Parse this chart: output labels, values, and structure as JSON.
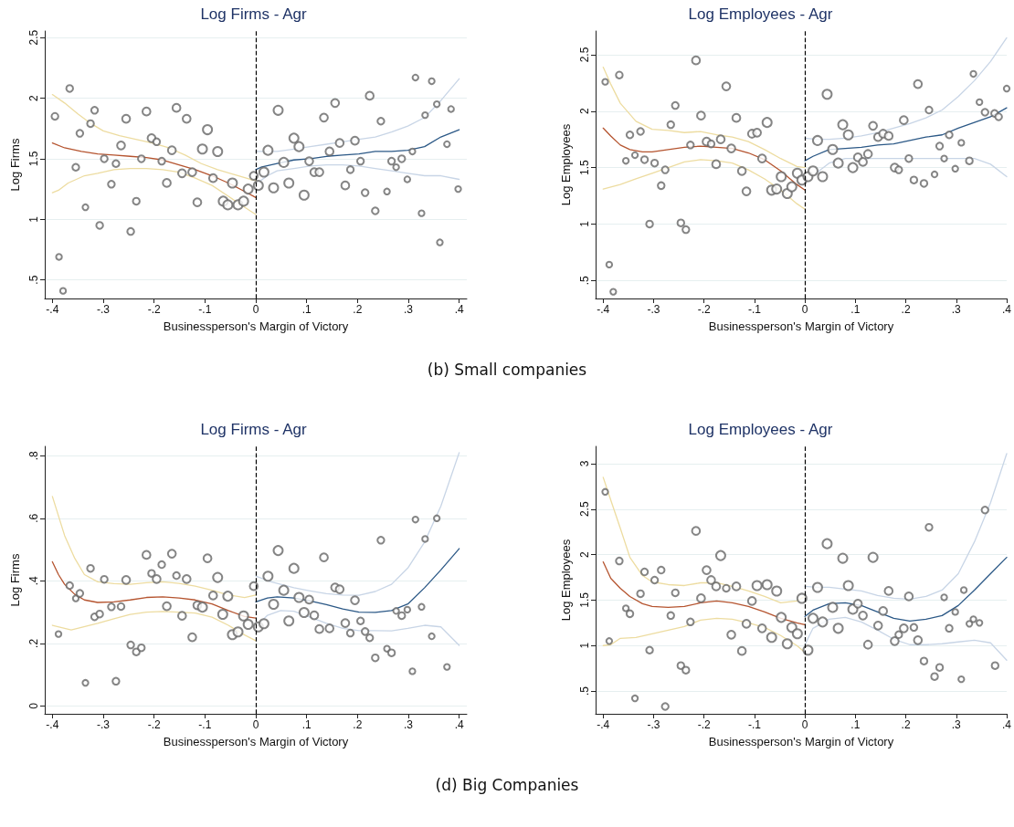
{
  "chart_data": [
    {
      "type": "bubble",
      "title": "Log Firms - Agr",
      "xlabel": "Businessperson's Margin of Victory",
      "ylabel": "Log Firms",
      "annotations": [
        "(b) Small companies"
      ],
      "xlim": [
        -0.415,
        0.415
      ],
      "ylim": [
        0.347,
        2.554
      ],
      "xticks": [
        {
          "value": -0.4,
          "label": "-.4"
        },
        {
          "value": -0.3,
          "label": "-.3"
        },
        {
          "value": -0.2,
          "label": "-.2"
        },
        {
          "value": -0.1,
          "label": "-.1"
        },
        {
          "value": 0,
          "label": "0"
        },
        {
          "value": 0.1,
          "label": ".1"
        },
        {
          "value": 0.2,
          "label": ".2"
        },
        {
          "value": 0.3,
          "label": ".3"
        },
        {
          "value": 0.4,
          "label": ".4"
        }
      ],
      "yticks": [
        {
          "value": 0.5,
          "label": ".5"
        },
        1,
        1.5,
        2,
        2.5
      ],
      "grid": "y",
      "ref_lines": [
        {
          "axis": "x",
          "value": 0,
          "color": "#000000",
          "line_style": "dashed"
        }
      ],
      "series": [
        {
          "color": "#666666",
          "x": [
            -0.395,
            -0.366,
            -0.387,
            -0.379,
            -0.354,
            -0.346,
            -0.335,
            -0.325,
            -0.317,
            -0.307,
            -0.298,
            -0.284,
            -0.275,
            -0.265,
            -0.255,
            -0.246,
            -0.235,
            -0.225,
            -0.215,
            -0.205,
            -0.195,
            -0.185,
            -0.175,
            -0.165,
            -0.156,
            -0.145,
            -0.136,
            -0.125,
            -0.115,
            -0.105,
            -0.095,
            -0.084,
            -0.075,
            -0.064,
            -0.055,
            -0.046,
            -0.035,
            -0.024,
            -0.015,
            -0.004,
            0.005,
            0.016,
            0.024,
            0.035,
            0.044,
            0.055,
            0.065,
            0.075,
            0.085,
            0.095,
            0.105,
            0.115,
            0.125,
            0.134,
            0.145,
            0.156,
            0.165,
            0.176,
            0.186,
            0.195,
            0.206,
            0.215,
            0.224,
            0.235,
            0.246,
            0.258,
            0.267,
            0.276,
            0.287,
            0.298,
            0.308,
            0.314,
            0.326,
            0.333,
            0.346,
            0.356,
            0.362,
            0.376,
            0.384,
            0.398
          ],
          "values": [
            1.85,
            2.08,
            0.69,
            0.41,
            1.43,
            1.71,
            1.1,
            1.79,
            1.9,
            0.95,
            1.5,
            1.29,
            1.46,
            1.61,
            1.83,
            0.9,
            1.15,
            1.5,
            1.89,
            1.67,
            1.64,
            1.48,
            1.3,
            1.57,
            1.92,
            1.38,
            1.83,
            1.39,
            1.14,
            1.58,
            1.74,
            1.34,
            1.56,
            1.15,
            1.12,
            1.3,
            1.12,
            1.15,
            1.25,
            1.36,
            1.28,
            1.39,
            1.57,
            1.26,
            1.9,
            1.47,
            1.3,
            1.67,
            1.6,
            1.2,
            1.48,
            1.39,
            1.39,
            1.84,
            1.56,
            1.96,
            1.63,
            1.28,
            1.41,
            1.65,
            1.48,
            1.22,
            2.02,
            1.07,
            1.81,
            1.23,
            1.48,
            1.43,
            1.5,
            1.33,
            1.56,
            2.17,
            1.05,
            1.86,
            2.14,
            1.95,
            0.81,
            1.62,
            1.91,
            1.25
          ],
          "sizes": [
            0.55,
            0.55,
            0.4,
            0.4,
            0.55,
            0.55,
            0.4,
            0.55,
            0.55,
            0.55,
            0.55,
            0.55,
            0.55,
            0.75,
            0.75,
            0.55,
            0.55,
            0.55,
            0.75,
            0.75,
            0.55,
            0.55,
            0.75,
            0.75,
            0.75,
            0.75,
            0.75,
            0.75,
            0.75,
            1,
            1,
            0.75,
            1,
            1,
            1,
            1,
            1,
            1,
            1,
            0.75,
            1,
            1,
            1,
            1,
            1,
            1,
            1,
            1,
            1,
            1,
            0.75,
            0.75,
            0.75,
            0.75,
            0.75,
            0.75,
            0.75,
            0.75,
            0.55,
            0.75,
            0.55,
            0.55,
            0.75,
            0.55,
            0.55,
            0.4,
            0.55,
            0.4,
            0.55,
            0.4,
            0.4,
            0.4,
            0.4,
            0.4,
            0.4,
            0.4,
            0.4,
            0.4,
            0.4,
            0.4
          ]
        },
        {
          "type": "line",
          "color": "#eddca0",
          "x": [
            -0.4,
            -0.376,
            -0.35,
            -0.324,
            -0.3,
            -0.268,
            -0.236,
            -0.204,
            -0.171,
            -0.139,
            -0.107,
            -0.075,
            -0.043,
            -0.011,
            0
          ],
          "values": [
            2.03,
            1.96,
            1.87,
            1.79,
            1.73,
            1.69,
            1.66,
            1.63,
            1.59,
            1.53,
            1.46,
            1.41,
            1.37,
            1.33,
            1.32
          ]
        },
        {
          "type": "line",
          "color": "#eddca0",
          "x": [
            -0.4,
            -0.388,
            -0.369,
            -0.337,
            -0.311,
            -0.279,
            -0.247,
            -0.215,
            -0.183,
            -0.151,
            -0.119,
            -0.086,
            -0.054,
            -0.022,
            0
          ],
          "values": [
            1.22,
            1.24,
            1.3,
            1.36,
            1.38,
            1.41,
            1.42,
            1.42,
            1.41,
            1.39,
            1.34,
            1.28,
            1.19,
            1.1,
            1.04
          ]
        },
        {
          "type": "line",
          "color": "#b5542f",
          "x": [
            -0.4,
            -0.376,
            -0.343,
            -0.311,
            -0.279,
            -0.247,
            -0.215,
            -0.183,
            -0.151,
            -0.119,
            -0.086,
            -0.054,
            -0.022,
            0
          ],
          "values": [
            1.63,
            1.59,
            1.56,
            1.54,
            1.53,
            1.52,
            1.51,
            1.49,
            1.45,
            1.41,
            1.36,
            1.3,
            1.23,
            1.18
          ]
        },
        {
          "type": "line",
          "color": "#c8d5e6",
          "x": [
            0,
            0.023,
            0.042,
            0.075,
            0.107,
            0.139,
            0.171,
            0.203,
            0.235,
            0.267,
            0.299,
            0.332,
            0.364,
            0.4
          ],
          "values": [
            1.56,
            1.56,
            1.56,
            1.58,
            1.6,
            1.62,
            1.64,
            1.66,
            1.68,
            1.72,
            1.77,
            1.84,
            1.98,
            2.16
          ]
        },
        {
          "type": "line",
          "color": "#c8d5e6",
          "x": [
            0,
            0.023,
            0.042,
            0.075,
            0.107,
            0.139,
            0.171,
            0.203,
            0.235,
            0.267,
            0.299,
            0.332,
            0.364,
            0.4
          ],
          "values": [
            1.29,
            1.36,
            1.4,
            1.42,
            1.44,
            1.45,
            1.45,
            1.44,
            1.42,
            1.4,
            1.38,
            1.36,
            1.36,
            1.33
          ]
        },
        {
          "type": "line",
          "color": "#2b5886",
          "x": [
            0,
            0.01,
            0.042,
            0.075,
            0.107,
            0.139,
            0.171,
            0.203,
            0.235,
            0.267,
            0.299,
            0.332,
            0.364,
            0.4
          ],
          "values": [
            1.41,
            1.43,
            1.46,
            1.49,
            1.5,
            1.52,
            1.53,
            1.54,
            1.56,
            1.56,
            1.57,
            1.6,
            1.68,
            1.74
          ]
        }
      ]
    },
    {
      "type": "bubble",
      "title": "Log Employees - Agr",
      "xlabel": "Businessperson's Margin of Victory",
      "ylabel": "Log Employees",
      "xlim": [
        -0.415,
        0.4
      ],
      "ylim": [
        0.34,
        2.71
      ],
      "xticks": [
        {
          "value": -0.4,
          "label": "-.4"
        },
        {
          "value": -0.3,
          "label": "-.3"
        },
        {
          "value": -0.2,
          "label": "-.2"
        },
        {
          "value": -0.1,
          "label": "-.1"
        },
        {
          "value": 0,
          "label": "0"
        },
        {
          "value": 0.1,
          "label": ".1"
        },
        {
          "value": 0.2,
          "label": ".2"
        },
        {
          "value": 0.3,
          "label": ".3"
        },
        {
          "value": 0.4,
          "label": ".4"
        }
      ],
      "yticks": [
        {
          "value": 0.5,
          "label": ".5"
        },
        1,
        1.5,
        2,
        2.5
      ],
      "grid": "y",
      "ref_lines": [
        {
          "axis": "x",
          "value": 0,
          "color": "#000000",
          "line_style": "dashed"
        }
      ],
      "series": [
        {
          "color": "#666666",
          "x": [
            -0.396,
            -0.368,
            -0.388,
            -0.38,
            -0.355,
            -0.347,
            -0.337,
            -0.326,
            -0.318,
            -0.308,
            -0.298,
            -0.285,
            -0.277,
            -0.266,
            -0.257,
            -0.246,
            -0.236,
            -0.227,
            -0.216,
            -0.206,
            -0.195,
            -0.186,
            -0.176,
            -0.167,
            -0.156,
            -0.146,
            -0.136,
            -0.125,
            -0.116,
            -0.105,
            -0.095,
            -0.085,
            -0.075,
            -0.066,
            -0.056,
            -0.047,
            -0.035,
            -0.026,
            -0.015,
            -0.006,
            0.006,
            0.016,
            0.025,
            0.035,
            0.044,
            0.055,
            0.066,
            0.075,
            0.086,
            0.095,
            0.105,
            0.115,
            0.125,
            0.135,
            0.145,
            0.155,
            0.166,
            0.178,
            0.186,
            0.196,
            0.206,
            0.216,
            0.224,
            0.236,
            0.246,
            0.257,
            0.267,
            0.276,
            0.286,
            0.298,
            0.31,
            0.326,
            0.334,
            0.346,
            0.357,
            0.376,
            0.384,
            0.4
          ],
          "values": [
            2.26,
            2.32,
            0.64,
            0.4,
            1.56,
            1.79,
            1.61,
            1.82,
            1.57,
            1.0,
            1.54,
            1.34,
            1.48,
            1.88,
            2.05,
            1.01,
            0.95,
            1.7,
            2.45,
            1.96,
            1.73,
            1.71,
            1.53,
            1.75,
            2.22,
            1.67,
            1.94,
            1.47,
            1.29,
            1.8,
            1.81,
            1.58,
            1.9,
            1.3,
            1.31,
            1.42,
            1.27,
            1.33,
            1.45,
            1.39,
            1.42,
            1.47,
            1.74,
            1.42,
            2.15,
            1.66,
            1.54,
            1.88,
            1.79,
            1.5,
            1.59,
            1.55,
            1.62,
            1.87,
            1.77,
            1.8,
            1.78,
            1.5,
            1.48,
            1.92,
            1.58,
            1.39,
            2.24,
            1.36,
            2.01,
            1.44,
            1.69,
            1.58,
            1.79,
            1.49,
            1.72,
            1.56,
            2.33,
            2.08,
            1.99,
            1.98,
            1.95,
            2.2
          ],
          "sizes": [
            0.4,
            0.55,
            0.4,
            0.4,
            0.4,
            0.55,
            0.4,
            0.55,
            0.55,
            0.55,
            0.55,
            0.55,
            0.55,
            0.55,
            0.55,
            0.55,
            0.55,
            0.55,
            0.75,
            0.75,
            0.75,
            0.55,
            0.75,
            0.75,
            0.75,
            0.75,
            0.75,
            0.75,
            0.75,
            0.75,
            0.75,
            0.75,
            1,
            1,
            1,
            1,
            1,
            1,
            1,
            1,
            1,
            1,
            1,
            1,
            1,
            1,
            1,
            1,
            1,
            1,
            0.75,
            0.75,
            0.75,
            0.75,
            0.75,
            0.75,
            0.75,
            0.75,
            0.55,
            0.75,
            0.55,
            0.55,
            0.75,
            0.55,
            0.55,
            0.4,
            0.55,
            0.4,
            0.55,
            0.4,
            0.4,
            0.55,
            0.4,
            0.4,
            0.55,
            0.55,
            0.55,
            0.4
          ]
        },
        {
          "type": "line",
          "color": "#eddca0",
          "x": [
            -0.4,
            -0.385,
            -0.366,
            -0.335,
            -0.303,
            -0.271,
            -0.239,
            -0.207,
            -0.175,
            -0.144,
            -0.112,
            -0.08,
            -0.048,
            -0.016,
            0
          ],
          "values": [
            2.39,
            2.24,
            2.07,
            1.91,
            1.84,
            1.83,
            1.81,
            1.82,
            1.79,
            1.77,
            1.73,
            1.66,
            1.58,
            1.51,
            1.5
          ]
        },
        {
          "type": "line",
          "color": "#eddca0",
          "x": [
            -0.4,
            -0.366,
            -0.335,
            -0.303,
            -0.271,
            -0.239,
            -0.207,
            -0.175,
            -0.144,
            -0.112,
            -0.08,
            -0.048,
            -0.016,
            0
          ],
          "values": [
            1.31,
            1.35,
            1.4,
            1.45,
            1.5,
            1.55,
            1.57,
            1.56,
            1.54,
            1.48,
            1.4,
            1.3,
            1.18,
            1.13
          ]
        },
        {
          "type": "line",
          "color": "#b5542f",
          "x": [
            -0.4,
            -0.385,
            -0.366,
            -0.347,
            -0.322,
            -0.303,
            -0.271,
            -0.239,
            -0.207,
            -0.175,
            -0.144,
            -0.112,
            -0.08,
            -0.048,
            -0.016,
            0
          ],
          "values": [
            1.85,
            1.78,
            1.7,
            1.66,
            1.64,
            1.64,
            1.66,
            1.68,
            1.69,
            1.68,
            1.67,
            1.63,
            1.57,
            1.47,
            1.35,
            1.3
          ]
        },
        {
          "type": "line",
          "color": "#c8d5e6",
          "x": [
            0,
            0.022,
            0.048,
            0.08,
            0.112,
            0.144,
            0.176,
            0.208,
            0.24,
            0.272,
            0.304,
            0.336,
            0.368,
            0.4
          ],
          "values": [
            1.76,
            1.75,
            1.75,
            1.76,
            1.78,
            1.81,
            1.85,
            1.89,
            1.94,
            2.01,
            2.13,
            2.27,
            2.44,
            2.65
          ]
        },
        {
          "type": "line",
          "color": "#c8d5e6",
          "x": [
            0.022,
            0.048,
            0.08,
            0.112,
            0.144,
            0.176,
            0.208,
            0.24,
            0.272,
            0.304,
            0.336,
            0.368,
            0.4
          ],
          "values": [
            1.45,
            1.54,
            1.58,
            1.58,
            1.58,
            1.58,
            1.58,
            1.58,
            1.58,
            1.58,
            1.58,
            1.53,
            1.42
          ]
        },
        {
          "type": "line",
          "color": "#2b5886",
          "x": [
            0,
            0.016,
            0.048,
            0.08,
            0.112,
            0.144,
            0.176,
            0.208,
            0.24,
            0.272,
            0.304,
            0.336,
            0.368,
            0.4
          ],
          "values": [
            1.56,
            1.6,
            1.66,
            1.67,
            1.68,
            1.7,
            1.71,
            1.74,
            1.77,
            1.79,
            1.85,
            1.9,
            1.95,
            2.03
          ]
        }
      ]
    },
    {
      "type": "bubble",
      "title": "Log Firms - Agr",
      "xlabel": "Businessperson's Margin of Victory",
      "ylabel": "Log Firms",
      "annotations": [
        "(d) Big Companies"
      ],
      "xlim": [
        -0.415,
        0.415
      ],
      "ylim": [
        -0.025,
        0.83
      ],
      "xticks": [
        {
          "value": -0.4,
          "label": "-.4"
        },
        {
          "value": -0.3,
          "label": "-.3"
        },
        {
          "value": -0.2,
          "label": "-.2"
        },
        {
          "value": -0.1,
          "label": "-.1"
        },
        {
          "value": 0,
          "label": "0"
        },
        {
          "value": 0.1,
          "label": ".1"
        },
        {
          "value": 0.2,
          "label": ".2"
        },
        {
          "value": 0.3,
          "label": ".3"
        },
        {
          "value": 0.4,
          "label": ".4"
        }
      ],
      "yticks": [
        0,
        {
          "value": 0.2,
          "label": ".2"
        },
        {
          "value": 0.4,
          "label": ".4"
        },
        {
          "value": 0.6,
          "label": ".6"
        },
        {
          "value": 0.8,
          "label": ".8"
        }
      ],
      "grid": "y",
      "ref_lines": [
        {
          "axis": "x",
          "value": 0,
          "color": "#000000",
          "line_style": "dashed"
        }
      ],
      "series": [
        {
          "color": "#666666",
          "x": [
            -0.388,
            -0.366,
            -0.354,
            -0.346,
            -0.335,
            -0.325,
            -0.317,
            -0.307,
            -0.298,
            -0.284,
            -0.275,
            -0.265,
            -0.255,
            -0.246,
            -0.235,
            -0.225,
            -0.215,
            -0.205,
            -0.195,
            -0.185,
            -0.175,
            -0.165,
            -0.156,
            -0.145,
            -0.136,
            -0.125,
            -0.115,
            -0.105,
            -0.095,
            -0.084,
            -0.075,
            -0.065,
            -0.055,
            -0.046,
            -0.035,
            -0.024,
            -0.015,
            -0.004,
            0.005,
            0.016,
            0.024,
            0.035,
            0.044,
            0.055,
            0.065,
            0.075,
            0.085,
            0.095,
            0.105,
            0.115,
            0.125,
            0.134,
            0.145,
            0.156,
            0.165,
            0.176,
            0.186,
            0.195,
            0.206,
            0.215,
            0.224,
            0.235,
            0.246,
            0.258,
            0.267,
            0.276,
            0.287,
            0.298,
            0.308,
            0.314,
            0.326,
            0.333,
            0.346,
            0.356,
            0.376
          ],
          "values": [
            0.23,
            0.385,
            0.344,
            0.36,
            0.074,
            0.44,
            0.285,
            0.294,
            0.405,
            0.317,
            0.079,
            0.318,
            0.403,
            0.195,
            0.173,
            0.186,
            0.483,
            0.424,
            0.406,
            0.452,
            0.319,
            0.487,
            0.417,
            0.288,
            0.406,
            0.22,
            0.322,
            0.316,
            0.472,
            0.353,
            0.411,
            0.293,
            0.351,
            0.228,
            0.237,
            0.288,
            0.261,
            0.383,
            0.253,
            0.263,
            0.415,
            0.325,
            0.497,
            0.37,
            0.272,
            0.44,
            0.347,
            0.299,
            0.34,
            0.29,
            0.246,
            0.475,
            0.248,
            0.379,
            0.373,
            0.265,
            0.233,
            0.338,
            0.272,
            0.238,
            0.218,
            0.154,
            0.53,
            0.183,
            0.17,
            0.304,
            0.289,
            0.308,
            0.111,
            0.596,
            0.317,
            0.534,
            0.223,
            0.6,
            0.125
          ],
          "sizes": [
            0.4,
            0.55,
            0.4,
            0.55,
            0.4,
            0.55,
            0.55,
            0.55,
            0.55,
            0.55,
            0.55,
            0.55,
            0.75,
            0.55,
            0.55,
            0.55,
            0.75,
            0.55,
            0.75,
            0.55,
            0.75,
            0.75,
            0.55,
            0.75,
            0.75,
            0.75,
            0.75,
            1,
            0.75,
            0.75,
            1,
            1,
            1,
            1,
            1,
            1,
            1,
            0.75,
            1,
            1,
            1,
            1,
            1,
            1,
            1,
            1,
            1,
            1,
            0.75,
            0.75,
            0.75,
            0.75,
            0.75,
            0.75,
            0.75,
            0.75,
            0.55,
            0.75,
            0.55,
            0.55,
            0.55,
            0.55,
            0.55,
            0.4,
            0.55,
            0.4,
            0.55,
            0.4,
            0.4,
            0.4,
            0.4,
            0.4,
            0.4,
            0.4,
            0.4
          ]
        },
        {
          "type": "line",
          "color": "#eddca0",
          "x": [
            -0.4,
            -0.376,
            -0.356,
            -0.337,
            -0.311,
            -0.279,
            -0.247,
            -0.215,
            -0.183,
            -0.151,
            -0.119,
            -0.086,
            -0.054,
            -0.022,
            0
          ],
          "values": [
            0.67,
            0.545,
            0.472,
            0.42,
            0.397,
            0.391,
            0.389,
            0.394,
            0.397,
            0.392,
            0.383,
            0.37,
            0.355,
            0.347,
            0.355
          ]
        },
        {
          "type": "line",
          "color": "#eddca0",
          "x": [
            -0.4,
            -0.363,
            -0.311,
            -0.279,
            -0.247,
            -0.215,
            -0.183,
            -0.151,
            -0.119,
            -0.086,
            -0.054,
            -0.022,
            0
          ],
          "values": [
            0.258,
            0.243,
            0.264,
            0.279,
            0.293,
            0.3,
            0.302,
            0.3,
            0.297,
            0.284,
            0.258,
            0.227,
            0.209
          ]
        },
        {
          "type": "line",
          "color": "#b5542f",
          "x": [
            -0.4,
            -0.388,
            -0.376,
            -0.356,
            -0.337,
            -0.311,
            -0.279,
            -0.247,
            -0.215,
            -0.183,
            -0.151,
            -0.119,
            -0.086,
            -0.054,
            -0.022,
            0
          ],
          "values": [
            0.461,
            0.42,
            0.389,
            0.357,
            0.339,
            0.331,
            0.333,
            0.339,
            0.347,
            0.349,
            0.345,
            0.339,
            0.326,
            0.305,
            0.286,
            0.281
          ]
        },
        {
          "type": "line",
          "color": "#c8d5e6",
          "x": [
            0,
            0.03,
            0.075,
            0.107,
            0.139,
            0.171,
            0.203,
            0.235,
            0.267,
            0.299,
            0.332,
            0.364,
            0.4
          ],
          "values": [
            0.415,
            0.397,
            0.378,
            0.368,
            0.359,
            0.355,
            0.354,
            0.366,
            0.389,
            0.441,
            0.524,
            0.639,
            0.81
          ]
        },
        {
          "type": "line",
          "color": "#c8d5e6",
          "x": [
            0,
            0.023,
            0.049,
            0.075,
            0.107,
            0.139,
            0.171,
            0.203,
            0.235,
            0.267,
            0.299,
            0.332,
            0.364,
            0.4
          ],
          "values": [
            0.253,
            0.29,
            0.305,
            0.303,
            0.284,
            0.264,
            0.248,
            0.241,
            0.241,
            0.24,
            0.248,
            0.258,
            0.253,
            0.194
          ]
        },
        {
          "type": "line",
          "color": "#2b5886",
          "x": [
            0,
            0.023,
            0.042,
            0.075,
            0.107,
            0.139,
            0.171,
            0.203,
            0.235,
            0.267,
            0.299,
            0.332,
            0.364,
            0.4
          ],
          "values": [
            0.333,
            0.345,
            0.349,
            0.345,
            0.336,
            0.324,
            0.31,
            0.3,
            0.299,
            0.305,
            0.326,
            0.378,
            0.435,
            0.503
          ]
        }
      ]
    },
    {
      "type": "bubble",
      "title": "Log Employees - Agr",
      "xlabel": "Businessperson's Margin of Victory",
      "ylabel": "Log Employees",
      "xlim": [
        -0.415,
        0.4
      ],
      "ylim": [
        0.25,
        3.19
      ],
      "xticks": [
        {
          "value": -0.4,
          "label": "-.4"
        },
        {
          "value": -0.3,
          "label": "-.3"
        },
        {
          "value": -0.2,
          "label": "-.2"
        },
        {
          "value": -0.1,
          "label": "-.1"
        },
        {
          "value": 0,
          "label": "0"
        },
        {
          "value": 0.1,
          "label": ".1"
        },
        {
          "value": 0.2,
          "label": ".2"
        },
        {
          "value": 0.3,
          "label": ".3"
        },
        {
          "value": 0.4,
          "label": ".4"
        }
      ],
      "yticks": [
        {
          "value": 0.5,
          "label": ".5"
        },
        1,
        1.5,
        2,
        2.5,
        3
      ],
      "grid": "y",
      "ref_lines": [
        {
          "axis": "x",
          "value": 0,
          "color": "#000000",
          "line_style": "dashed"
        }
      ],
      "series": [
        {
          "color": "#666666",
          "x": [
            -0.396,
            -0.368,
            -0.388,
            -0.337,
            -0.355,
            -0.347,
            -0.326,
            -0.318,
            -0.308,
            -0.298,
            -0.285,
            -0.277,
            -0.266,
            -0.257,
            -0.246,
            -0.236,
            -0.227,
            -0.216,
            -0.206,
            -0.195,
            -0.186,
            -0.176,
            -0.167,
            -0.156,
            -0.146,
            -0.136,
            -0.125,
            -0.116,
            -0.105,
            -0.095,
            -0.085,
            -0.075,
            -0.066,
            -0.056,
            -0.047,
            -0.035,
            -0.026,
            -0.015,
            -0.006,
            0.006,
            0.016,
            0.025,
            0.035,
            0.044,
            0.055,
            0.066,
            0.075,
            0.086,
            0.095,
            0.105,
            0.115,
            0.125,
            0.135,
            0.145,
            0.155,
            0.166,
            0.178,
            0.186,
            0.196,
            0.206,
            0.216,
            0.224,
            0.236,
            0.246,
            0.257,
            0.267,
            0.276,
            0.286,
            0.298,
            0.31,
            0.315,
            0.326,
            0.334,
            0.346,
            0.357,
            0.377
          ],
          "values": [
            2.69,
            1.93,
            1.05,
            0.42,
            1.41,
            1.35,
            1.57,
            1.81,
            0.95,
            1.72,
            1.83,
            0.33,
            1.33,
            1.58,
            0.78,
            0.73,
            1.26,
            2.26,
            1.52,
            1.83,
            1.72,
            1.65,
            1.99,
            1.63,
            1.12,
            1.65,
            0.94,
            1.24,
            1.49,
            1.66,
            1.19,
            1.67,
            1.09,
            1.6,
            1.31,
            1.02,
            1.2,
            1.13,
            1.52,
            0.95,
            1.3,
            1.64,
            1.26,
            2.12,
            1.42,
            1.19,
            1.96,
            1.66,
            1.4,
            1.46,
            1.33,
            1.01,
            1.97,
            1.22,
            1.38,
            1.6,
            1.05,
            1.12,
            1.19,
            1.54,
            1.2,
            1.06,
            0.83,
            2.3,
            0.66,
            0.76,
            1.53,
            1.19,
            1.37,
            0.63,
            1.61,
            1.24,
            1.29,
            1.25,
            2.49,
            0.78
          ],
          "sizes": [
            0.4,
            0.55,
            0.4,
            0.4,
            0.4,
            0.55,
            0.55,
            0.55,
            0.55,
            0.55,
            0.55,
            0.55,
            0.55,
            0.55,
            0.55,
            0.55,
            0.55,
            0.75,
            0.75,
            0.75,
            0.75,
            0.75,
            1,
            0.55,
            0.75,
            0.75,
            0.75,
            0.75,
            0.75,
            1,
            0.75,
            1,
            1,
            1,
            1,
            1,
            1,
            1,
            1,
            1,
            1,
            1,
            1,
            1,
            1,
            1,
            1,
            1,
            1,
            0.75,
            0.75,
            0.75,
            1,
            0.75,
            0.75,
            0.75,
            0.75,
            0.55,
            0.75,
            0.75,
            0.55,
            0.75,
            0.55,
            0.55,
            0.55,
            0.55,
            0.4,
            0.55,
            0.4,
            0.4,
            0.4,
            0.4,
            0.4,
            0.4,
            0.55,
            0.55
          ]
        },
        {
          "type": "line",
          "color": "#eddca0",
          "x": [
            -0.4,
            -0.385,
            -0.366,
            -0.347,
            -0.322,
            -0.303,
            -0.271,
            -0.239,
            -0.207,
            -0.175,
            -0.144,
            -0.112,
            -0.08,
            -0.048,
            -0.016,
            0
          ],
          "values": [
            2.85,
            2.6,
            2.29,
            1.97,
            1.77,
            1.7,
            1.67,
            1.66,
            1.69,
            1.69,
            1.65,
            1.6,
            1.54,
            1.47,
            1.49,
            1.54
          ]
        },
        {
          "type": "line",
          "color": "#eddca0",
          "x": [
            -0.4,
            -0.385,
            -0.366,
            -0.335,
            -0.303,
            -0.271,
            -0.239,
            -0.207,
            -0.175,
            -0.144,
            -0.112,
            -0.08,
            -0.048,
            -0.016,
            -0.003
          ],
          "values": [
            1.0,
            1.01,
            1.08,
            1.09,
            1.13,
            1.17,
            1.21,
            1.28,
            1.3,
            1.29,
            1.25,
            1.2,
            1.11,
            1.0,
            0.94
          ]
        },
        {
          "type": "line",
          "color": "#b5542f",
          "x": [
            -0.4,
            -0.385,
            -0.366,
            -0.347,
            -0.322,
            -0.303,
            -0.271,
            -0.239,
            -0.207,
            -0.175,
            -0.144,
            -0.112,
            -0.08,
            -0.048,
            -0.016,
            0
          ],
          "values": [
            1.92,
            1.74,
            1.63,
            1.54,
            1.46,
            1.43,
            1.42,
            1.43,
            1.47,
            1.49,
            1.47,
            1.43,
            1.37,
            1.3,
            1.25,
            1.23
          ]
        },
        {
          "type": "line",
          "color": "#c8d5e6",
          "x": [
            0,
            0.022,
            0.048,
            0.08,
            0.112,
            0.144,
            0.176,
            0.208,
            0.24,
            0.272,
            0.304,
            0.336,
            0.368,
            0.4
          ],
          "values": [
            1.65,
            1.64,
            1.64,
            1.62,
            1.6,
            1.55,
            1.52,
            1.51,
            1.54,
            1.61,
            1.79,
            2.14,
            2.57,
            3.11
          ]
        },
        {
          "type": "line",
          "color": "#c8d5e6",
          "x": [
            0,
            0.016,
            0.048,
            0.08,
            0.112,
            0.144,
            0.176,
            0.208,
            0.24,
            0.272,
            0.304,
            0.336,
            0.368,
            0.4
          ],
          "values": [
            1.01,
            1.19,
            1.29,
            1.31,
            1.26,
            1.17,
            1.07,
            1.01,
            1.01,
            1.02,
            1.04,
            1.06,
            1.03,
            0.84
          ]
        },
        {
          "type": "line",
          "color": "#2b5886",
          "x": [
            0,
            0.016,
            0.048,
            0.08,
            0.112,
            0.144,
            0.176,
            0.208,
            0.24,
            0.272,
            0.304,
            0.336,
            0.368,
            0.4
          ],
          "values": [
            1.32,
            1.39,
            1.46,
            1.47,
            1.44,
            1.37,
            1.3,
            1.27,
            1.29,
            1.33,
            1.44,
            1.61,
            1.79,
            1.97
          ]
        }
      ]
    }
  ]
}
